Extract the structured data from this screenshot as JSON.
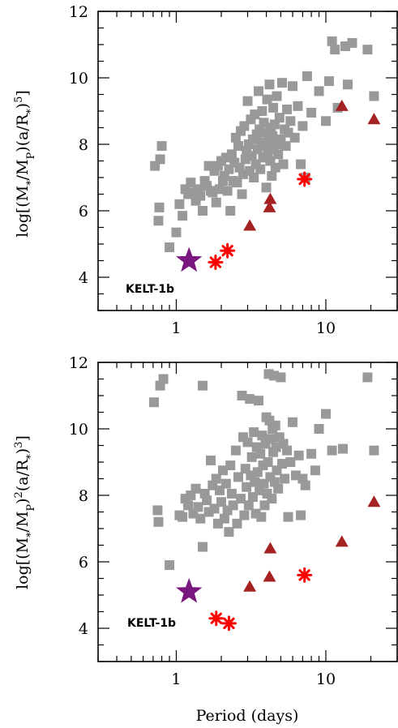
{
  "colors": {
    "other_planets": "#999999",
    "kelt1b": "#7a177f",
    "star_markers": "#ff0000",
    "triangle_markers": "#a52222",
    "axes": "#000000"
  },
  "chart_data": [
    {
      "type": "scatter",
      "title": "",
      "xlabel": "",
      "ylabel": "log[(M*/Mp)(a/R*)^5]",
      "xscale": "log",
      "xlim": [
        0.3,
        30
      ],
      "ylim": [
        3,
        12
      ],
      "xticks": [
        "1",
        "10"
      ],
      "yticks": [
        "4",
        "6",
        "8",
        "10",
        "12"
      ],
      "annotation": "KELT-1b",
      "series": [
        {
          "marker": "square",
          "color": "#999999",
          "points": [
            [
              0.72,
              7.35
            ],
            [
              0.78,
              7.55
            ],
            [
              0.8,
              7.95
            ],
            [
              0.77,
              6.1
            ],
            [
              0.76,
              5.7
            ],
            [
              0.9,
              4.9
            ],
            [
              1.0,
              5.35
            ],
            [
              1.1,
              5.85
            ],
            [
              1.05,
              6.2
            ],
            [
              1.15,
              6.65
            ],
            [
              1.2,
              6.5
            ],
            [
              1.25,
              6.85
            ],
            [
              1.3,
              6.55
            ],
            [
              1.35,
              6.3
            ],
            [
              1.4,
              6.65
            ],
            [
              1.45,
              6.45
            ],
            [
              1.5,
              6.0
            ],
            [
              1.55,
              6.9
            ],
            [
              1.6,
              6.75
            ],
            [
              1.65,
              7.35
            ],
            [
              1.7,
              6.6
            ],
            [
              1.75,
              6.55
            ],
            [
              1.8,
              7.2
            ],
            [
              1.85,
              6.25
            ],
            [
              1.9,
              7.35
            ],
            [
              1.95,
              6.65
            ],
            [
              2.0,
              7.5
            ],
            [
              2.05,
              6.9
            ],
            [
              2.1,
              7.05
            ],
            [
              2.15,
              7.6
            ],
            [
              2.2,
              6.6
            ],
            [
              2.25,
              7.25
            ],
            [
              2.3,
              6.0
            ],
            [
              2.35,
              7.7
            ],
            [
              2.4,
              6.9
            ],
            [
              2.45,
              7.45
            ],
            [
              2.5,
              8.2
            ],
            [
              2.55,
              6.85
            ],
            [
              2.6,
              7.95
            ],
            [
              2.65,
              7.3
            ],
            [
              2.7,
              8.4
            ],
            [
              2.75,
              6.5
            ],
            [
              2.8,
              7.1
            ],
            [
              2.85,
              8.55
            ],
            [
              2.9,
              7.55
            ],
            [
              2.95,
              7.8
            ],
            [
              3.0,
              9.3
            ],
            [
              3.05,
              8.0
            ],
            [
              3.1,
              7.2
            ],
            [
              3.15,
              8.75
            ],
            [
              3.2,
              7.65
            ],
            [
              3.25,
              8.15
            ],
            [
              3.3,
              7.0
            ],
            [
              3.35,
              8.9
            ],
            [
              3.4,
              7.4
            ],
            [
              3.45,
              8.3
            ],
            [
              3.5,
              7.85
            ],
            [
              3.55,
              9.6
            ],
            [
              3.6,
              8.45
            ],
            [
              3.65,
              7.25
            ],
            [
              3.7,
              8.05
            ],
            [
              3.75,
              9.0
            ],
            [
              3.8,
              7.6
            ],
            [
              3.85,
              8.65
            ],
            [
              3.9,
              7.95
            ],
            [
              3.95,
              8.35
            ],
            [
              4.0,
              6.7
            ],
            [
              4.05,
              9.35
            ],
            [
              4.1,
              7.75
            ],
            [
              4.15,
              8.1
            ],
            [
              4.2,
              9.8
            ],
            [
              4.25,
              7.5
            ],
            [
              4.3,
              8.5
            ],
            [
              4.35,
              7.05
            ],
            [
              4.4,
              8.25
            ],
            [
              4.45,
              9.1
            ],
            [
              4.5,
              7.85
            ],
            [
              4.55,
              8.6
            ],
            [
              4.6,
              7.3
            ],
            [
              4.65,
              8.0
            ],
            [
              4.7,
              9.45
            ],
            [
              4.8,
              7.7
            ],
            [
              4.9,
              8.8
            ],
            [
              5.0,
              8.15
            ],
            [
              5.1,
              9.85
            ],
            [
              5.2,
              7.4
            ],
            [
              5.3,
              8.45
            ],
            [
              5.4,
              7.95
            ],
            [
              5.5,
              9.05
            ],
            [
              5.6,
              8.35
            ],
            [
              5.8,
              8.7
            ],
            [
              6.0,
              9.75
            ],
            [
              6.2,
              8.2
            ],
            [
              6.5,
              9.15
            ],
            [
              6.8,
              7.4
            ],
            [
              7.0,
              8.55
            ],
            [
              7.3,
              7.0
            ],
            [
              7.5,
              10.05
            ],
            [
              8.0,
              8.95
            ],
            [
              9.0,
              9.6
            ],
            [
              10.0,
              8.7
            ],
            [
              10.5,
              9.9
            ],
            [
              11.0,
              11.1
            ],
            [
              11.5,
              10.85
            ],
            [
              12.0,
              9.1
            ],
            [
              13.5,
              10.95
            ],
            [
              14.0,
              9.8
            ],
            [
              15.0,
              11.05
            ],
            [
              19.0,
              10.85
            ],
            [
              21.0,
              9.45
            ]
          ]
        },
        {
          "marker": "star",
          "color": "#7a177f",
          "label": "KELT-1b",
          "points": [
            [
              1.217,
              4.5
            ]
          ]
        },
        {
          "marker": "asterisk",
          "color": "#ff0000",
          "points": [
            [
              1.83,
              4.45
            ],
            [
              2.2,
              4.8
            ],
            [
              7.2,
              6.95
            ]
          ]
        },
        {
          "marker": "triangle",
          "color": "#a52222",
          "points": [
            [
              3.1,
              5.55
            ],
            [
              4.2,
              6.1
            ],
            [
              4.25,
              6.35
            ],
            [
              12.8,
              9.15
            ],
            [
              21.0,
              8.75
            ]
          ]
        }
      ]
    },
    {
      "type": "scatter",
      "title": "",
      "xlabel": "Period (days)",
      "ylabel": "log[(M*/Mp)^2(a/R*)^3]",
      "xscale": "log",
      "xlim": [
        0.3,
        30
      ],
      "ylim": [
        3,
        12
      ],
      "xticks": [
        "1",
        "10"
      ],
      "yticks": [
        "4",
        "6",
        "8",
        "10",
        "12"
      ],
      "annotation": "KELT-1b",
      "series": [
        {
          "marker": "square",
          "color": "#999999",
          "points": [
            [
              0.71,
              10.8
            ],
            [
              0.78,
              11.3
            ],
            [
              0.82,
              11.5
            ],
            [
              0.75,
              7.55
            ],
            [
              0.76,
              7.2
            ],
            [
              0.9,
              5.9
            ],
            [
              1.05,
              7.4
            ],
            [
              1.1,
              7.35
            ],
            [
              1.15,
              7.9
            ],
            [
              1.5,
              11.3
            ],
            [
              1.2,
              7.7
            ],
            [
              1.25,
              8.0
            ],
            [
              1.3,
              7.45
            ],
            [
              1.35,
              8.2
            ],
            [
              1.4,
              7.65
            ],
            [
              1.45,
              7.3
            ],
            [
              1.5,
              6.45
            ],
            [
              1.55,
              8.05
            ],
            [
              1.6,
              7.85
            ],
            [
              1.65,
              7.5
            ],
            [
              1.7,
              9.05
            ],
            [
              1.75,
              8.3
            ],
            [
              1.8,
              7.6
            ],
            [
              1.85,
              8.5
            ],
            [
              1.9,
              7.15
            ],
            [
              1.95,
              8.15
            ],
            [
              2.0,
              7.8
            ],
            [
              2.05,
              8.75
            ],
            [
              2.1,
              7.3
            ],
            [
              2.15,
              8.35
            ],
            [
              2.2,
              7.55
            ],
            [
              2.25,
              6.9
            ],
            [
              2.3,
              8.9
            ],
            [
              2.35,
              8.05
            ],
            [
              2.4,
              7.7
            ],
            [
              2.5,
              9.35
            ],
            [
              2.55,
              7.15
            ],
            [
              2.6,
              8.55
            ],
            [
              2.7,
              7.9
            ],
            [
              2.75,
              11.0
            ],
            [
              2.8,
              9.75
            ],
            [
              2.85,
              7.4
            ],
            [
              2.9,
              8.8
            ],
            [
              2.95,
              8.25
            ],
            [
              3.0,
              9.6
            ],
            [
              3.05,
              7.7
            ],
            [
              3.1,
              10.9
            ],
            [
              3.15,
              8.6
            ],
            [
              3.2,
              9.15
            ],
            [
              3.25,
              7.95
            ],
            [
              3.3,
              9.9
            ],
            [
              3.35,
              8.4
            ],
            [
              3.4,
              7.45
            ],
            [
              3.45,
              9.45
            ],
            [
              3.5,
              8.7
            ],
            [
              3.55,
              10.85
            ],
            [
              3.6,
              8.15
            ],
            [
              3.65,
              9.25
            ],
            [
              3.7,
              7.35
            ],
            [
              3.75,
              9.8
            ],
            [
              3.8,
              8.9
            ],
            [
              3.85,
              8.35
            ],
            [
              3.9,
              7.7
            ],
            [
              3.95,
              9.55
            ],
            [
              4.0,
              10.35
            ],
            [
              4.05,
              8.05
            ],
            [
              4.1,
              9.0
            ],
            [
              4.15,
              11.65
            ],
            [
              4.2,
              10.25
            ],
            [
              4.25,
              8.55
            ],
            [
              4.3,
              9.7
            ],
            [
              4.35,
              7.9
            ],
            [
              4.4,
              10.0
            ],
            [
              4.45,
              9.3
            ],
            [
              4.5,
              11.6
            ],
            [
              4.55,
              8.4
            ],
            [
              4.6,
              10.1
            ],
            [
              4.65,
              9.45
            ],
            [
              4.7,
              8.75
            ],
            [
              4.8,
              8.2
            ],
            [
              4.9,
              9.75
            ],
            [
              5.0,
              11.55
            ],
            [
              5.1,
              8.95
            ],
            [
              5.2,
              9.55
            ],
            [
              5.3,
              8.5
            ],
            [
              5.5,
              9.35
            ],
            [
              5.6,
              7.35
            ],
            [
              5.8,
              9.0
            ],
            [
              6.0,
              10.2
            ],
            [
              6.3,
              8.6
            ],
            [
              6.6,
              9.2
            ],
            [
              6.8,
              7.4
            ],
            [
              7.0,
              8.5
            ],
            [
              7.3,
              8.3
            ],
            [
              8.0,
              9.25
            ],
            [
              8.5,
              8.75
            ],
            [
              9.0,
              10.0
            ],
            [
              10.0,
              10.45
            ],
            [
              11.0,
              9.35
            ],
            [
              13.0,
              9.4
            ],
            [
              19.0,
              11.55
            ],
            [
              21.0,
              9.35
            ]
          ]
        },
        {
          "marker": "star",
          "color": "#7a177f",
          "label": "KELT-1b",
          "points": [
            [
              1.217,
              5.1
            ]
          ]
        },
        {
          "marker": "asterisk",
          "color": "#ff0000",
          "points": [
            [
              1.85,
              4.3
            ],
            [
              2.25,
              4.15
            ],
            [
              7.2,
              5.6
            ]
          ]
        },
        {
          "marker": "triangle",
          "color": "#a52222",
          "points": [
            [
              3.1,
              5.25
            ],
            [
              4.2,
              5.55
            ],
            [
              4.25,
              6.4
            ],
            [
              12.8,
              6.6
            ],
            [
              21.0,
              7.8
            ]
          ]
        }
      ]
    }
  ]
}
